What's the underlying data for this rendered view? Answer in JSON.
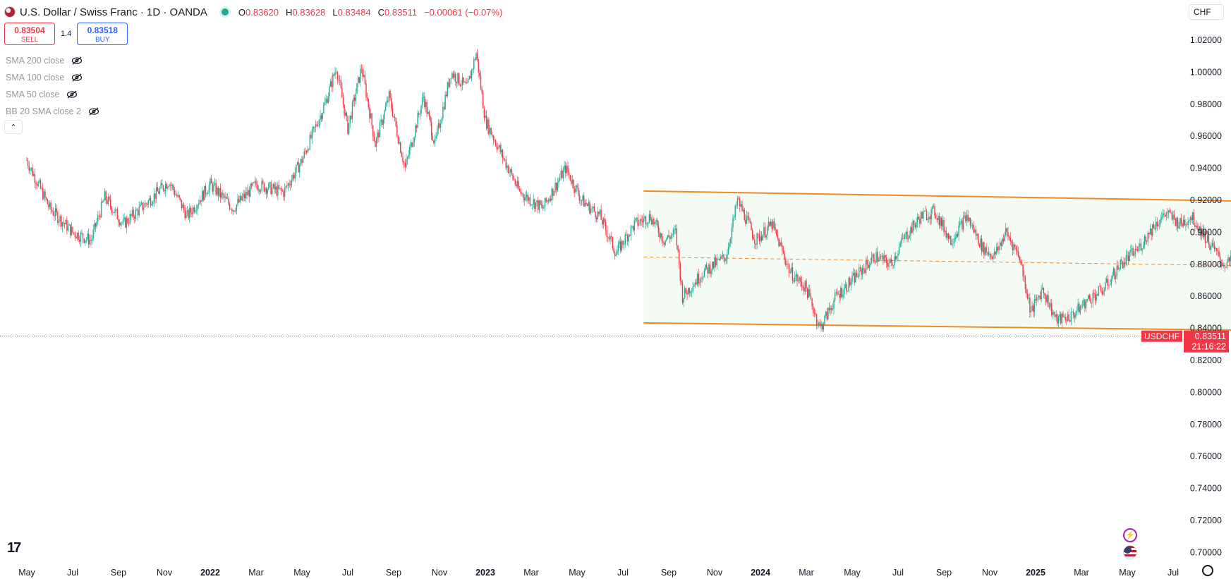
{
  "header": {
    "title": "U.S. Dollar / Swiss Franc · 1D · OANDA",
    "ohlc": {
      "o_label": "O",
      "o": "0.83620",
      "h_label": "H",
      "h": "0.83628",
      "l_label": "L",
      "l": "0.83484",
      "c_label": "C",
      "c": "0.83511",
      "change": "−0.00061 (−0.07%)"
    }
  },
  "trade": {
    "sell_price": "0.83504",
    "sell_label": "SELL",
    "spread": "1.4",
    "buy_price": "0.83518",
    "buy_label": "BUY"
  },
  "indicators": [
    "SMA 200 close",
    "SMA 100 close",
    "SMA 50 close",
    "BB 20 SMA close 2"
  ],
  "currency_selector": "CHF",
  "price_label": {
    "symbol": "USDCHF",
    "price": "0.83511",
    "countdown": "21:16:22"
  },
  "colors": {
    "up": "#22ab94",
    "down": "#f23645",
    "channel": "#f08a24",
    "channel_fill": "#f4faf4",
    "price_tag": "#f23645"
  },
  "icons": [
    "us-flag-icon",
    "live-status-icon",
    "eye-crossed-icon",
    "chevron-up-icon",
    "tradingview-logo-icon",
    "lightning-icon",
    "settings-gear-icon"
  ],
  "chart_data": {
    "type": "candlestick",
    "symbol": "USDCHF",
    "timeframe": "1D",
    "y_ticks": [
      "1.02000",
      "1.00000",
      "0.98000",
      "0.96000",
      "0.94000",
      "0.92000",
      "0.90000",
      "0.88000",
      "0.86000",
      "0.84000",
      "0.82000",
      "0.80000",
      "0.78000",
      "0.76000",
      "0.74000",
      "0.72000",
      "0.70000"
    ],
    "x_ticks": [
      {
        "label": "May",
        "bold": false
      },
      {
        "label": "Jul",
        "bold": false
      },
      {
        "label": "Sep",
        "bold": false
      },
      {
        "label": "Nov",
        "bold": false
      },
      {
        "label": "2022",
        "bold": true
      },
      {
        "label": "Mar",
        "bold": false
      },
      {
        "label": "May",
        "bold": false
      },
      {
        "label": "Jul",
        "bold": false
      },
      {
        "label": "Sep",
        "bold": false
      },
      {
        "label": "Nov",
        "bold": false
      },
      {
        "label": "2023",
        "bold": true
      },
      {
        "label": "Mar",
        "bold": false
      },
      {
        "label": "May",
        "bold": false
      },
      {
        "label": "Jul",
        "bold": false
      },
      {
        "label": "Sep",
        "bold": false
      },
      {
        "label": "Nov",
        "bold": false
      },
      {
        "label": "2024",
        "bold": true
      },
      {
        "label": "Mar",
        "bold": false
      },
      {
        "label": "May",
        "bold": false
      },
      {
        "label": "Jul",
        "bold": false
      },
      {
        "label": "Sep",
        "bold": false
      },
      {
        "label": "Nov",
        "bold": false
      },
      {
        "label": "2025",
        "bold": true
      },
      {
        "label": "Mar",
        "bold": false
      },
      {
        "label": "May",
        "bold": false
      },
      {
        "label": "Jul",
        "bold": false
      }
    ],
    "ylim": [
      0.69,
      1.025
    ],
    "last_price": 0.83511,
    "price_path": [
      {
        "month": 0,
        "price": 0.945
      },
      {
        "month": 1,
        "price": 0.915
      },
      {
        "month": 2,
        "price": 0.9
      },
      {
        "month": 2.8,
        "price": 0.895
      },
      {
        "month": 3.4,
        "price": 0.922
      },
      {
        "month": 4.2,
        "price": 0.905
      },
      {
        "month": 5.2,
        "price": 0.918
      },
      {
        "month": 6.2,
        "price": 0.932
      },
      {
        "month": 7,
        "price": 0.91
      },
      {
        "month": 8,
        "price": 0.93
      },
      {
        "month": 9,
        "price": 0.915
      },
      {
        "month": 10,
        "price": 0.93
      },
      {
        "month": 11.2,
        "price": 0.925
      },
      {
        "month": 12,
        "price": 0.945
      },
      {
        "month": 13,
        "price": 0.98
      },
      {
        "month": 13.5,
        "price": 1.003
      },
      {
        "month": 14,
        "price": 0.965
      },
      {
        "month": 14.6,
        "price": 1.003
      },
      {
        "month": 15.2,
        "price": 0.955
      },
      {
        "month": 15.8,
        "price": 0.985
      },
      {
        "month": 16.5,
        "price": 0.94
      },
      {
        "month": 17.3,
        "price": 0.985
      },
      {
        "month": 17.8,
        "price": 0.955
      },
      {
        "month": 18.5,
        "price": 1.0
      },
      {
        "month": 19.2,
        "price": 0.99
      },
      {
        "month": 19.6,
        "price": 1.012
      },
      {
        "month": 20,
        "price": 0.97
      },
      {
        "month": 20.5,
        "price": 0.955
      },
      {
        "month": 21.5,
        "price": 0.925
      },
      {
        "month": 22.5,
        "price": 0.915
      },
      {
        "month": 23.5,
        "price": 0.94
      },
      {
        "month": 24.2,
        "price": 0.92
      },
      {
        "month": 25,
        "price": 0.91
      },
      {
        "month": 25.7,
        "price": 0.887
      },
      {
        "month": 26.5,
        "price": 0.905
      },
      {
        "month": 27.2,
        "price": 0.91
      },
      {
        "month": 27.8,
        "price": 0.895
      },
      {
        "month": 28.3,
        "price": 0.9
      },
      {
        "month": 28.6,
        "price": 0.86
      },
      {
        "month": 29.5,
        "price": 0.875
      },
      {
        "month": 30.5,
        "price": 0.885
      },
      {
        "month": 31,
        "price": 0.92
      },
      {
        "month": 31.8,
        "price": 0.895
      },
      {
        "month": 32.5,
        "price": 0.905
      },
      {
        "month": 33.3,
        "price": 0.875
      },
      {
        "month": 34,
        "price": 0.865
      },
      {
        "month": 34.6,
        "price": 0.84
      },
      {
        "month": 35.3,
        "price": 0.86
      },
      {
        "month": 36,
        "price": 0.87
      },
      {
        "month": 37,
        "price": 0.885
      },
      {
        "month": 37.7,
        "price": 0.88
      },
      {
        "month": 38.2,
        "price": 0.895
      },
      {
        "month": 39,
        "price": 0.91
      },
      {
        "month": 39.6,
        "price": 0.913
      },
      {
        "month": 40.3,
        "price": 0.895
      },
      {
        "month": 41,
        "price": 0.91
      },
      {
        "month": 41.7,
        "price": 0.89
      },
      {
        "month": 42.2,
        "price": 0.885
      },
      {
        "month": 42.7,
        "price": 0.9
      },
      {
        "month": 43.3,
        "price": 0.885
      },
      {
        "month": 43.8,
        "price": 0.85
      },
      {
        "month": 44.3,
        "price": 0.865
      },
      {
        "month": 44.9,
        "price": 0.845
      },
      {
        "month": 45.6,
        "price": 0.848
      },
      {
        "month": 46.3,
        "price": 0.858
      },
      {
        "month": 47,
        "price": 0.865
      },
      {
        "month": 47.7,
        "price": 0.88
      },
      {
        "month": 48.5,
        "price": 0.89
      },
      {
        "month": 49.2,
        "price": 0.905
      },
      {
        "month": 49.7,
        "price": 0.912
      },
      {
        "month": 50.3,
        "price": 0.905
      },
      {
        "month": 50.8,
        "price": 0.91
      },
      {
        "month": 51.5,
        "price": 0.895
      },
      {
        "month": 52.2,
        "price": 0.88
      },
      {
        "month": 52.6,
        "price": 0.882
      },
      {
        "month": 53,
        "price": 0.86
      },
      {
        "month": 53.2,
        "price": 0.826
      },
      {
        "month": 53.6,
        "price": 0.812
      },
      {
        "month": 54.1,
        "price": 0.82
      },
      {
        "month": 54.6,
        "price": 0.83
      },
      {
        "month": 55.1,
        "price": 0.835
      }
    ],
    "channel": {
      "upper": [
        {
          "month": 26.9,
          "price": 0.9258
        },
        {
          "month": 54.3,
          "price": 0.9192
        }
      ],
      "mid": [
        {
          "month": 26.9,
          "price": 0.8846
        },
        {
          "month": 54.3,
          "price": 0.8789
        }
      ],
      "lower": [
        {
          "month": 26.9,
          "price": 0.8434
        },
        {
          "month": 54.3,
          "price": 0.8386
        }
      ]
    }
  }
}
